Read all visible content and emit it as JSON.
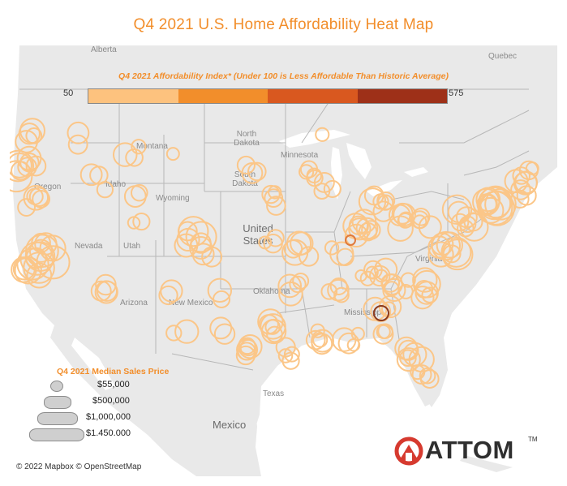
{
  "title": "Q4 2021 U.S. Home Affordability Heat Map",
  "affordability_legend": {
    "title": "Q4 2021 Affordability Index* (Under 100 is Less Affordable Than Historic Average)",
    "min_label": "50",
    "max_label": "575",
    "colors": [
      "#fdc27e",
      "#f28e2b",
      "#d9581f",
      "#9e3018"
    ]
  },
  "map_labels": {
    "alberta": "Alberta",
    "quebec": "Quebec",
    "montana": "Montana",
    "north_dakota": "North Dakota",
    "south_dakota": "South Dakota",
    "minnesota": "Minnesota",
    "wyoming": "Wyoming",
    "nevada": "Nevada",
    "utah": "Utah",
    "arizona": "Arizona",
    "new_mexico": "New Mexico",
    "oklahoma": "Oklahoma",
    "virginia": "Virginia",
    "mississippi": "Mississippi",
    "texas": "Texas",
    "oregon": "Oregon",
    "idaho": "Idaho",
    "united_states": "United States",
    "mexico": "Mexico"
  },
  "size_legend": {
    "title": "Q4 2021 Median Sales Price",
    "items": [
      {
        "label": "$55,000"
      },
      {
        "label": "$500,000"
      },
      {
        "label": "$1,000,000"
      },
      {
        "label": "$1.450.000"
      }
    ]
  },
  "credit": "© 2022 Mapbox © OpenStreetMap",
  "logo": {
    "text": "ATTOM",
    "tm": "TM"
  },
  "colors": {
    "marker": "#fbc688",
    "marker_dark": "#8c3a1d",
    "marker_mid": "#e07a3c",
    "land": "#e9e9e9",
    "water": "#ffffff",
    "border": "#b7b7b7"
  }
}
